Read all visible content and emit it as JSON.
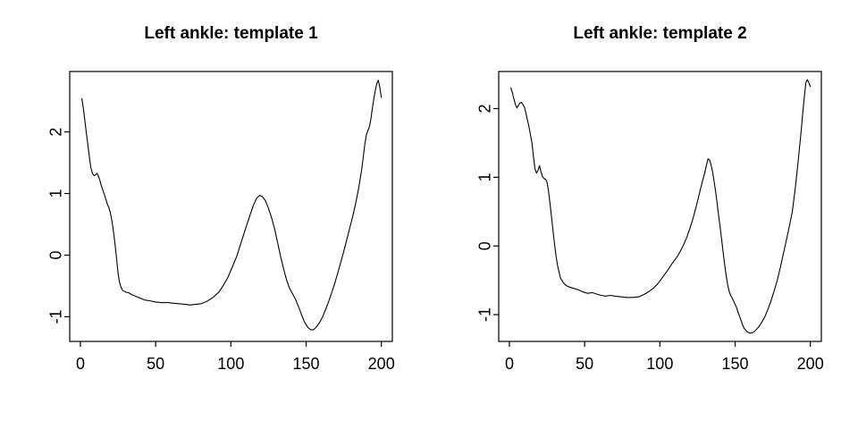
{
  "figure": {
    "background": "#ffffff",
    "axis_color": "#000000",
    "line_color": "#000000"
  },
  "chart_data": [
    {
      "type": "line",
      "title": "Left ankle: template 1",
      "xlabel": "",
      "ylabel": "",
      "xlim": [
        -7.1,
        207.3
      ],
      "ylim": [
        -1.4,
        2.98
      ],
      "xticks": [
        0,
        50,
        100,
        150,
        200
      ],
      "yticks": [
        -1,
        0,
        1,
        2
      ],
      "grid": false,
      "legend": null,
      "series": [
        {
          "name": "template 1",
          "color": "#000000",
          "points": [
            [
              1,
              2.54
            ],
            [
              2,
              2.38
            ],
            [
              3,
              2.18
            ],
            [
              4,
              1.97
            ],
            [
              5,
              1.78
            ],
            [
              6,
              1.58
            ],
            [
              7,
              1.42
            ],
            [
              8,
              1.33
            ],
            [
              9,
              1.29
            ],
            [
              10,
              1.3
            ],
            [
              11,
              1.33
            ],
            [
              12,
              1.28
            ],
            [
              13,
              1.21
            ],
            [
              14,
              1.12
            ],
            [
              15,
              1.05
            ],
            [
              16,
              0.98
            ],
            [
              17,
              0.9
            ],
            [
              18,
              0.82
            ],
            [
              19,
              0.77
            ],
            [
              20,
              0.68
            ],
            [
              21,
              0.55
            ],
            [
              22,
              0.38
            ],
            [
              23,
              0.18
            ],
            [
              24,
              -0.05
            ],
            [
              25,
              -0.28
            ],
            [
              26,
              -0.44
            ],
            [
              27,
              -0.52
            ],
            [
              28,
              -0.57
            ],
            [
              30,
              -0.6
            ],
            [
              32,
              -0.61
            ],
            [
              34,
              -0.64
            ],
            [
              36,
              -0.66
            ],
            [
              38,
              -0.68
            ],
            [
              40,
              -0.7
            ],
            [
              43,
              -0.73
            ],
            [
              46,
              -0.74
            ],
            [
              50,
              -0.76
            ],
            [
              54,
              -0.77
            ],
            [
              58,
              -0.77
            ],
            [
              62,
              -0.78
            ],
            [
              66,
              -0.79
            ],
            [
              70,
              -0.8
            ],
            [
              73,
              -0.81
            ],
            [
              76,
              -0.8
            ],
            [
              80,
              -0.79
            ],
            [
              84,
              -0.75
            ],
            [
              88,
              -0.69
            ],
            [
              92,
              -0.6
            ],
            [
              95,
              -0.49
            ],
            [
              98,
              -0.36
            ],
            [
              101,
              -0.19
            ],
            [
              104,
              -0.01
            ],
            [
              107,
              0.22
            ],
            [
              110,
              0.45
            ],
            [
              113,
              0.67
            ],
            [
              115,
              0.81
            ],
            [
              117,
              0.92
            ],
            [
              119,
              0.97
            ],
            [
              121,
              0.95
            ],
            [
              123,
              0.88
            ],
            [
              125,
              0.76
            ],
            [
              127,
              0.61
            ],
            [
              129,
              0.43
            ],
            [
              131,
              0.21
            ],
            [
              133,
              -0.02
            ],
            [
              135,
              -0.22
            ],
            [
              137,
              -0.4
            ],
            [
              139,
              -0.54
            ],
            [
              141,
              -0.63
            ],
            [
              143,
              -0.72
            ],
            [
              145,
              -0.84
            ],
            [
              147,
              -0.97
            ],
            [
              149,
              -1.09
            ],
            [
              151,
              -1.17
            ],
            [
              153,
              -1.21
            ],
            [
              155,
              -1.21
            ],
            [
              157,
              -1.16
            ],
            [
              159,
              -1.09
            ],
            [
              161,
              -1.0
            ],
            [
              163,
              -0.88
            ],
            [
              165,
              -0.75
            ],
            [
              167,
              -0.61
            ],
            [
              169,
              -0.46
            ],
            [
              171,
              -0.29
            ],
            [
              173,
              -0.12
            ],
            [
              175,
              0.06
            ],
            [
              177,
              0.25
            ],
            [
              179,
              0.44
            ],
            [
              181,
              0.63
            ],
            [
              183,
              0.85
            ],
            [
              185,
              1.1
            ],
            [
              187,
              1.4
            ],
            [
              189,
              1.8
            ],
            [
              190,
              1.95
            ],
            [
              191,
              2.02
            ],
            [
              192,
              2.08
            ],
            [
              193,
              2.2
            ],
            [
              194,
              2.38
            ],
            [
              195,
              2.54
            ],
            [
              196,
              2.68
            ],
            [
              197,
              2.79
            ],
            [
              198,
              2.84
            ],
            [
              199,
              2.72
            ],
            [
              200,
              2.56
            ]
          ]
        }
      ]
    },
    {
      "type": "line",
      "title": "Left ankle: template 2",
      "xlabel": "",
      "ylabel": "",
      "xlim": [
        -7.1,
        207.3
      ],
      "ylim": [
        -1.39,
        2.54
      ],
      "xticks": [
        0,
        50,
        100,
        150,
        200
      ],
      "yticks": [
        -1,
        0,
        1,
        2
      ],
      "grid": false,
      "legend": null,
      "series": [
        {
          "name": "template 2",
          "color": "#000000",
          "points": [
            [
              1,
              2.3
            ],
            [
              2,
              2.23
            ],
            [
              3,
              2.14
            ],
            [
              4,
              2.06
            ],
            [
              5,
              2.01
            ],
            [
              6,
              2.05
            ],
            [
              7,
              2.08
            ],
            [
              8,
              2.09
            ],
            [
              9,
              2.06
            ],
            [
              10,
              2.02
            ],
            [
              11,
              1.93
            ],
            [
              12,
              1.83
            ],
            [
              13,
              1.74
            ],
            [
              14,
              1.62
            ],
            [
              15,
              1.5
            ],
            [
              16,
              1.3
            ],
            [
              17,
              1.12
            ],
            [
              18,
              1.06
            ],
            [
              19,
              1.1
            ],
            [
              20,
              1.17
            ],
            [
              21,
              1.08
            ],
            [
              22,
              1.01
            ],
            [
              23,
              0.98
            ],
            [
              24,
              0.97
            ],
            [
              25,
              0.93
            ],
            [
              26,
              0.8
            ],
            [
              27,
              0.62
            ],
            [
              28,
              0.42
            ],
            [
              29,
              0.22
            ],
            [
              30,
              0.02
            ],
            [
              31,
              -0.15
            ],
            [
              32,
              -0.28
            ],
            [
              33,
              -0.38
            ],
            [
              34,
              -0.47
            ],
            [
              36,
              -0.54
            ],
            [
              38,
              -0.58
            ],
            [
              40,
              -0.6
            ],
            [
              43,
              -0.62
            ],
            [
              46,
              -0.64
            ],
            [
              49,
              -0.67
            ],
            [
              52,
              -0.69
            ],
            [
              55,
              -0.68
            ],
            [
              58,
              -0.7
            ],
            [
              61,
              -0.72
            ],
            [
              64,
              -0.73
            ],
            [
              67,
              -0.72
            ],
            [
              70,
              -0.73
            ],
            [
              74,
              -0.74
            ],
            [
              78,
              -0.75
            ],
            [
              82,
              -0.75
            ],
            [
              86,
              -0.74
            ],
            [
              90,
              -0.7
            ],
            [
              93,
              -0.66
            ],
            [
              96,
              -0.61
            ],
            [
              99,
              -0.54
            ],
            [
              102,
              -0.45
            ],
            [
              105,
              -0.36
            ],
            [
              108,
              -0.26
            ],
            [
              110,
              -0.2
            ],
            [
              112,
              -0.14
            ],
            [
              114,
              -0.06
            ],
            [
              116,
              0.03
            ],
            [
              118,
              0.13
            ],
            [
              120,
              0.26
            ],
            [
              122,
              0.4
            ],
            [
              124,
              0.56
            ],
            [
              126,
              0.74
            ],
            [
              128,
              0.92
            ],
            [
              130,
              1.08
            ],
            [
              131,
              1.18
            ],
            [
              132,
              1.27
            ],
            [
              133,
              1.25
            ],
            [
              134,
              1.18
            ],
            [
              135,
              1.08
            ],
            [
              136,
              0.95
            ],
            [
              137,
              0.8
            ],
            [
              138,
              0.63
            ],
            [
              139,
              0.45
            ],
            [
              140,
              0.28
            ],
            [
              141,
              0.1
            ],
            [
              142,
              -0.08
            ],
            [
              143,
              -0.26
            ],
            [
              144,
              -0.42
            ],
            [
              145,
              -0.56
            ],
            [
              146,
              -0.66
            ],
            [
              147,
              -0.72
            ],
            [
              148,
              -0.76
            ],
            [
              149,
              -0.8
            ],
            [
              150,
              -0.85
            ],
            [
              151,
              -0.9
            ],
            [
              152,
              -0.97
            ],
            [
              153,
              -1.03
            ],
            [
              154,
              -1.09
            ],
            [
              155,
              -1.15
            ],
            [
              156,
              -1.2
            ],
            [
              158,
              -1.25
            ],
            [
              160,
              -1.27
            ],
            [
              162,
              -1.26
            ],
            [
              164,
              -1.22
            ],
            [
              166,
              -1.17
            ],
            [
              168,
              -1.1
            ],
            [
              170,
              -1.02
            ],
            [
              172,
              -0.91
            ],
            [
              174,
              -0.79
            ],
            [
              176,
              -0.65
            ],
            [
              178,
              -0.5
            ],
            [
              180,
              -0.32
            ],
            [
              182,
              -0.12
            ],
            [
              184,
              0.08
            ],
            [
              186,
              0.28
            ],
            [
              188,
              0.5
            ],
            [
              190,
              0.85
            ],
            [
              192,
              1.25
            ],
            [
              194,
              1.7
            ],
            [
              195,
              1.95
            ],
            [
              196,
              2.18
            ],
            [
              197,
              2.38
            ],
            [
              198,
              2.42
            ],
            [
              199,
              2.38
            ],
            [
              200,
              2.32
            ]
          ]
        }
      ]
    }
  ]
}
